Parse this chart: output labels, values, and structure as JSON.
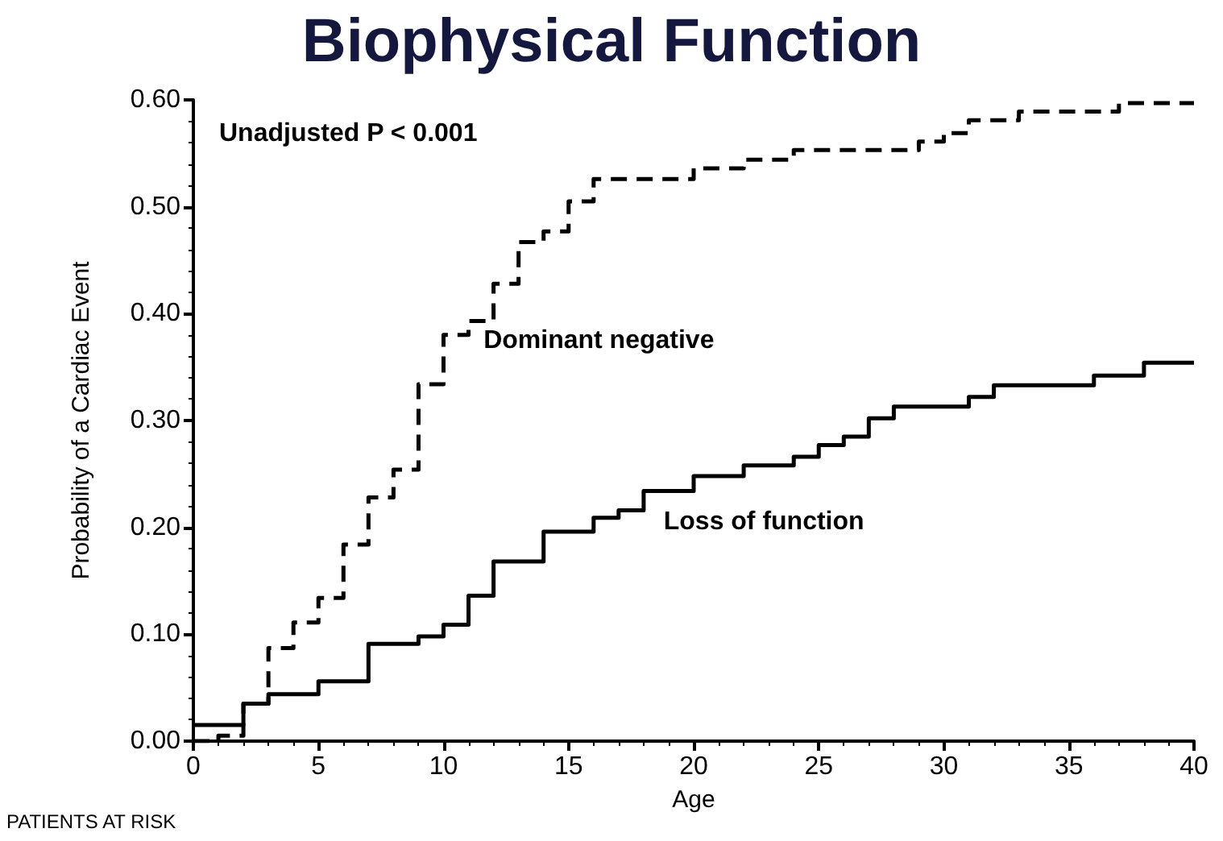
{
  "chart_data": {
    "type": "step",
    "title": "Biophysical Function",
    "xlabel": "Age",
    "ylabel": "Probability of a Cardiac Event",
    "annotations": [
      "Unadjusted P < 0.001",
      "PATIENTS AT RISK"
    ],
    "xlim": [
      0,
      40
    ],
    "xticks": [
      0,
      5,
      10,
      15,
      20,
      25,
      30,
      35,
      40
    ],
    "ylim": [
      0,
      0.6
    ],
    "yticks": [
      {
        "value": 0,
        "label": "0.00"
      },
      {
        "value": 0.1,
        "label": "0.10"
      },
      {
        "value": 0.2,
        "label": "0.20"
      },
      {
        "value": 0.3,
        "label": "0.30"
      },
      {
        "value": 0.4,
        "label": "0.40"
      },
      {
        "value": 0.5,
        "label": "0.50"
      },
      {
        "value": 0.6,
        "label": "0.60"
      }
    ],
    "grid": false,
    "legend": false,
    "marker": "none",
    "series": [
      {
        "name": "Dominant negative",
        "color": "#000000",
        "line_style": "dashed",
        "x": [
          0,
          1,
          2,
          3,
          4,
          5,
          6,
          7,
          8,
          9,
          10,
          11,
          12,
          13,
          14,
          15,
          16,
          20,
          22,
          24,
          29,
          30,
          31,
          33,
          37,
          40
        ],
        "values": [
          0.0,
          0.005,
          0.035,
          0.087,
          0.111,
          0.134,
          0.184,
          0.228,
          0.254,
          0.334,
          0.38,
          0.393,
          0.428,
          0.467,
          0.477,
          0.505,
          0.526,
          0.536,
          0.544,
          0.553,
          0.561,
          0.569,
          0.581,
          0.589,
          0.597,
          0.597
        ]
      },
      {
        "name": "Loss of function",
        "color": "#000000",
        "line_style": "solid",
        "x": [
          0,
          2,
          3,
          5,
          7,
          9,
          10,
          11,
          12,
          14,
          16,
          17,
          18,
          20,
          22,
          24,
          25,
          26,
          27,
          28,
          31,
          32,
          36,
          38,
          40
        ],
        "values": [
          0.015,
          0.035,
          0.044,
          0.056,
          0.091,
          0.098,
          0.109,
          0.136,
          0.168,
          0.196,
          0.209,
          0.216,
          0.234,
          0.248,
          0.258,
          0.266,
          0.277,
          0.285,
          0.302,
          0.313,
          0.322,
          0.333,
          0.342,
          0.354,
          0.354
        ]
      }
    ]
  }
}
